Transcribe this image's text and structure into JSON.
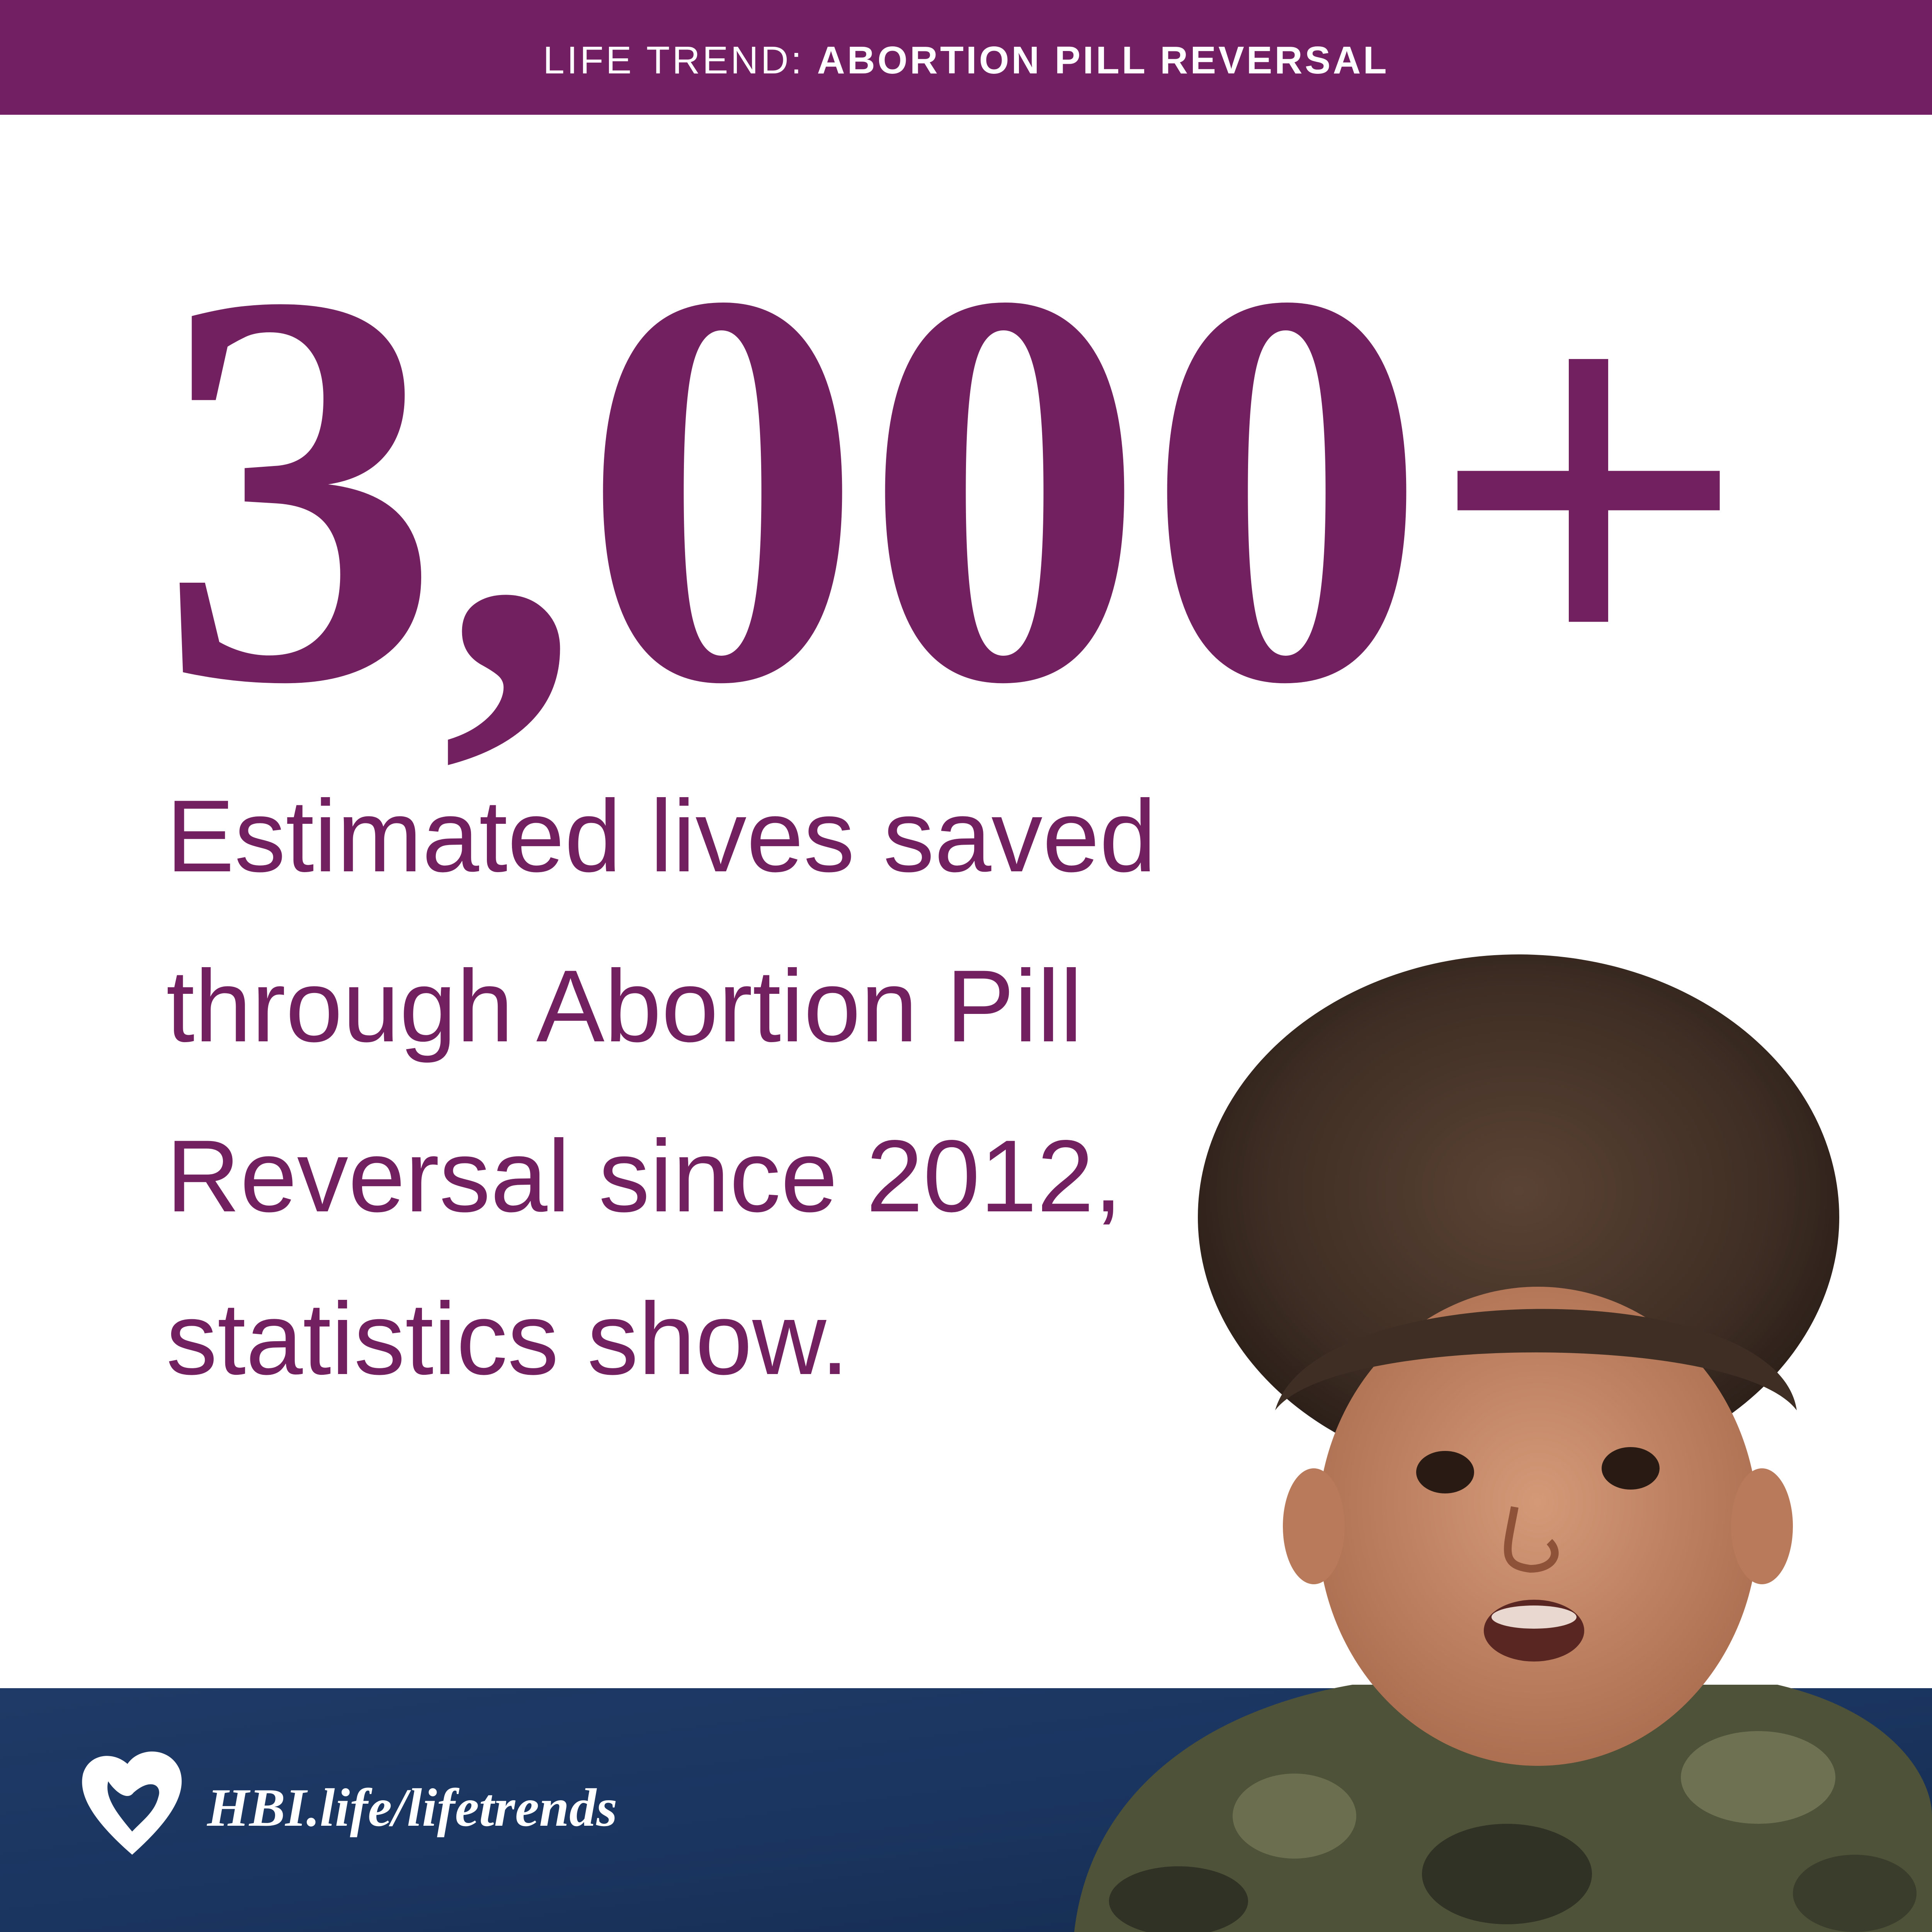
{
  "header": {
    "label": "LIFE TREND:",
    "title": "ABORTION PILL REVERSAL"
  },
  "headline": {
    "stat": "3,000+"
  },
  "description": {
    "lines": [
      "Estimated lives saved",
      "through Abortion Pill",
      "Reversal since 2012,",
      "statistics show."
    ]
  },
  "footer": {
    "url": "HBI.life/lifetrends"
  }
}
